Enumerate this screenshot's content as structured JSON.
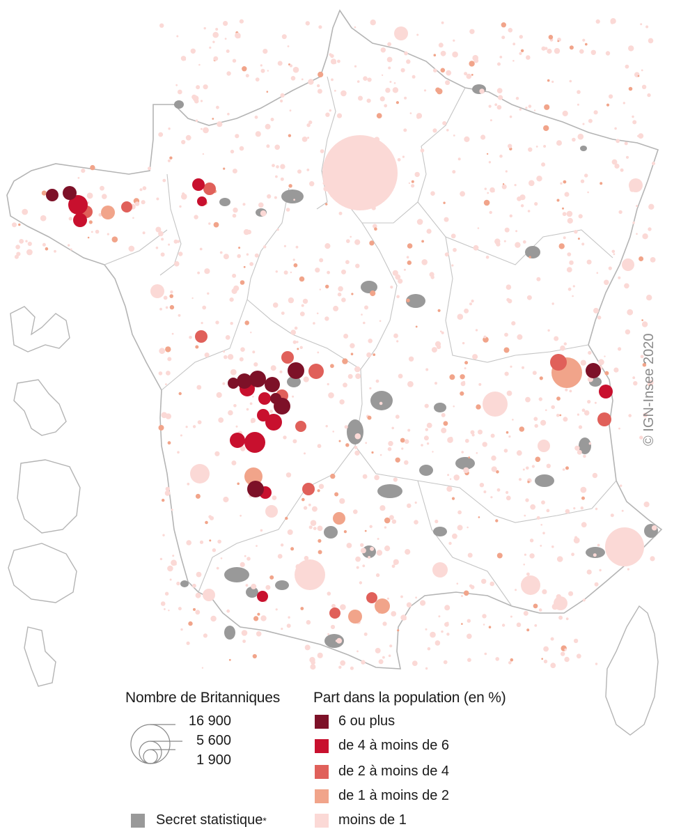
{
  "map": {
    "colors": {
      "border": "#b4b4b4",
      "secret": "#999999",
      "c6plus": "#7d1128",
      "c4to6": "#c8102e",
      "c2to4": "#e0605a",
      "c1to2": "#f1a48a",
      "clt1": "#fbd9d6"
    },
    "copyright": "© IGN-Insee 2020"
  },
  "legend": {
    "size_title": "Nombre de Britanniques",
    "size_values": [
      "16 900",
      "5 600",
      "1 900"
    ],
    "class_title": "Part dans la population (en %)",
    "classes": [
      {
        "label": "6 ou plus",
        "color": "#7d1128"
      },
      {
        "label": "de 4 à moins de 6",
        "color": "#c8102e"
      },
      {
        "label": "de 2 à moins de 4",
        "color": "#e0605a"
      },
      {
        "label": "de 1 à moins de 2",
        "color": "#f1a48a"
      },
      {
        "label": "moins de 1",
        "color": "#fbd9d6"
      }
    ],
    "secret_label": "Secret statistique",
    "secret_mark": "*"
  }
}
